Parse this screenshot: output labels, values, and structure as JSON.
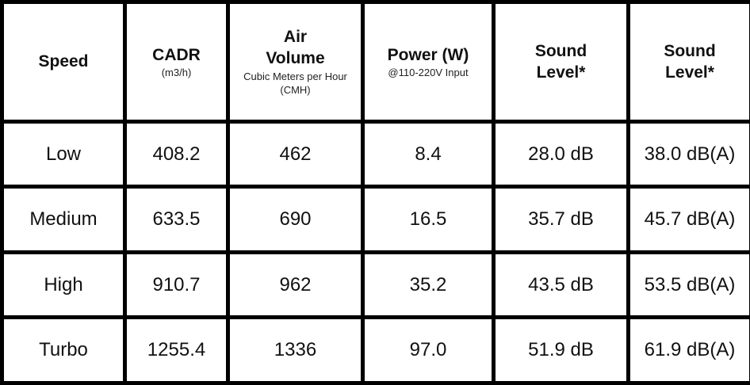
{
  "table": {
    "headers": [
      {
        "main": "Speed",
        "sub": ""
      },
      {
        "main": "CADR",
        "sub": "(m3/h)"
      },
      {
        "main": "Air Volume",
        "sub": "Cubic Meters per Hour (CMH)"
      },
      {
        "main": "Power (W)",
        "sub": "@110-220V Input"
      },
      {
        "main": "Sound Level*",
        "sub": ""
      },
      {
        "main": "Sound Level*",
        "sub": ""
      }
    ],
    "rows": [
      [
        "Low",
        "408.2",
        "462",
        "8.4",
        "28.0 dB",
        "38.0 dB(A)"
      ],
      [
        "Medium",
        "633.5",
        "690",
        "16.5",
        "35.7 dB",
        "45.7 dB(A)"
      ],
      [
        "High",
        "910.7",
        "962",
        "35.2",
        "43.5 dB",
        "53.5 dB(A)"
      ],
      [
        "Turbo",
        "1255.4",
        "1336",
        "97.0",
        "51.9 dB",
        "61.9 dB(A)"
      ]
    ]
  }
}
